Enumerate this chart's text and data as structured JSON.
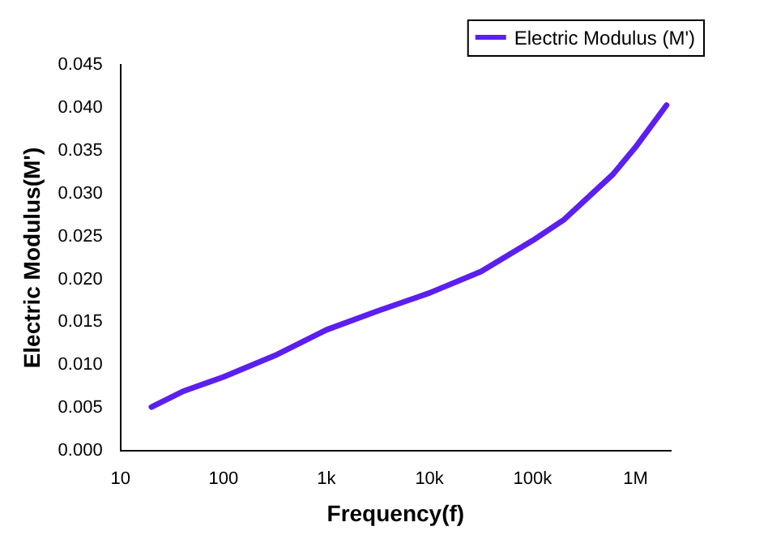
{
  "chart_data": {
    "type": "line",
    "xlabel": "Frequency(f)",
    "ylabel": "Electric Modulus(M')",
    "log": "x",
    "legend": "top right",
    "marker": "none",
    "line_style": "solid",
    "grid": false,
    "xlim": [
      10,
      2200000
    ],
    "xticks": [
      10,
      100,
      {
        "value": 1000,
        "label": "1k"
      },
      {
        "value": 10000,
        "label": "10k"
      },
      {
        "value": 100000,
        "label": "100k"
      },
      {
        "value": 1000000,
        "label": "1M"
      }
    ],
    "ylim": [
      0,
      0.045
    ],
    "yticks": [
      {
        "value": 0,
        "label": "0.000"
      },
      {
        "value": 0.005,
        "label": "0.005"
      },
      {
        "value": 0.01,
        "label": "0.010"
      },
      {
        "value": 0.015,
        "label": "0.015"
      },
      {
        "value": 0.02,
        "label": "0.020"
      },
      {
        "value": 0.025,
        "label": "0.025"
      },
      {
        "value": 0.03,
        "label": "0.030"
      },
      {
        "value": 0.035,
        "label": "0.035"
      },
      {
        "value": 0.04,
        "label": "0.040"
      },
      {
        "value": 0.045,
        "label": "0.045"
      }
    ],
    "x": [
      20,
      40,
      100,
      316,
      1000,
      3160,
      10000,
      31600,
      100000,
      200000,
      316000,
      600000,
      1000000,
      2000000
    ],
    "series": [
      {
        "name": "Electric Modulus (M')",
        "color": "#5b1ff0",
        "values": [
          0.0051,
          0.0069,
          0.0086,
          0.0111,
          0.0141,
          0.0163,
          0.0184,
          0.0209,
          0.0245,
          0.0269,
          0.0291,
          0.0322,
          0.0354,
          0.0403
        ]
      }
    ]
  }
}
